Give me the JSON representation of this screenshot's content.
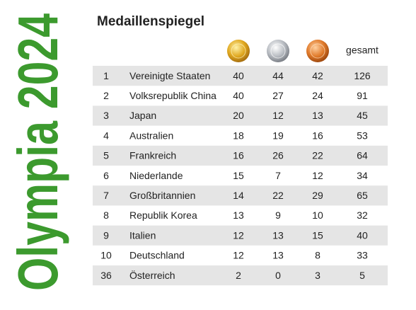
{
  "side_title": "Olympia 2024",
  "title": "Medaillenspiegel",
  "table": {
    "header": {
      "total": "gesamt"
    },
    "rows": [
      [
        1,
        "Vereinigte Staaten",
        40,
        44,
        42,
        126
      ],
      [
        2,
        "Volksrepublik China",
        40,
        27,
        24,
        91
      ],
      [
        3,
        "Japan",
        20,
        12,
        13,
        45
      ],
      [
        4,
        "Australien",
        18,
        19,
        16,
        53
      ],
      [
        5,
        "Frankreich",
        16,
        26,
        22,
        64
      ],
      [
        6,
        "Niederlande",
        15,
        7,
        12,
        34
      ],
      [
        7,
        "Großbritannien",
        14,
        22,
        29,
        65
      ],
      [
        8,
        "Republik Korea",
        13,
        9,
        10,
        32
      ],
      [
        9,
        "Italien",
        12,
        13,
        15,
        40
      ],
      [
        10,
        "Deutschland",
        12,
        13,
        8,
        33
      ],
      [
        36,
        "Österreich",
        2,
        0,
        3,
        5
      ]
    ]
  }
}
